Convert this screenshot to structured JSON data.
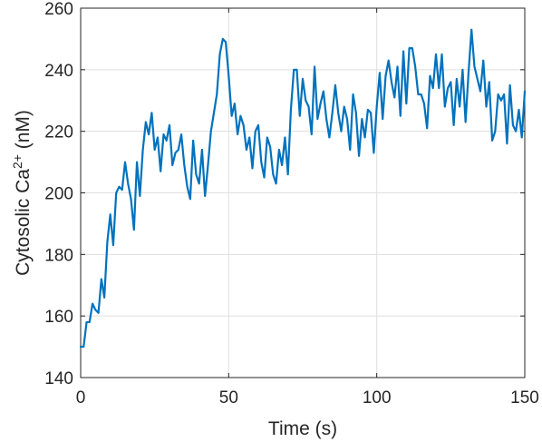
{
  "chart_data": {
    "type": "line",
    "title": "",
    "xlabel": "Time (s)",
    "ylabel_base": "Cytosolic Ca",
    "ylabel_superscript": "2+",
    "ylabel_unit": " (nM)",
    "xlim": [
      0,
      150
    ],
    "ylim": [
      140,
      260
    ],
    "xticks": [
      0,
      50,
      100,
      150
    ],
    "xtick_labels": [
      "0",
      "50",
      "100",
      "150"
    ],
    "yticks": [
      140,
      160,
      180,
      200,
      220,
      240,
      260
    ],
    "ytick_labels": [
      "140",
      "160",
      "180",
      "200",
      "220",
      "240",
      "260"
    ],
    "grid": true,
    "legend": "none",
    "line_color": "#0072BD",
    "series": [
      {
        "x": [
          0,
          1,
          2,
          3,
          4,
          5,
          6,
          7,
          8,
          9,
          10,
          11,
          12,
          13,
          14,
          15,
          16,
          17,
          18,
          19,
          20,
          21,
          22,
          23,
          24,
          25,
          26,
          27,
          28,
          29,
          30,
          31,
          32,
          33,
          34,
          35,
          36,
          37,
          38,
          39,
          40,
          41,
          42,
          43,
          44,
          45,
          46,
          47,
          48,
          49,
          50,
          51,
          52,
          53,
          54,
          55,
          56,
          57,
          58,
          59,
          60,
          61,
          62,
          63,
          64,
          65,
          66,
          67,
          68,
          69,
          70,
          71,
          72,
          73,
          74,
          75,
          76,
          77,
          78,
          79,
          80,
          81,
          82,
          83,
          84,
          85,
          86,
          87,
          88,
          89,
          90,
          91,
          92,
          93,
          94,
          95,
          96,
          97,
          98,
          99,
          100,
          101,
          102,
          103,
          104,
          105,
          106,
          107,
          108,
          109,
          110,
          111,
          112,
          113,
          114,
          115,
          116,
          117,
          118,
          119,
          120,
          121,
          122,
          123,
          124,
          125,
          126,
          127,
          128,
          129,
          130,
          131,
          132,
          133,
          134,
          135,
          136,
          137,
          138,
          139,
          140,
          141,
          142,
          143,
          144,
          145,
          146,
          147,
          148,
          149,
          150
        ],
        "y": [
          150,
          150,
          158,
          158,
          164,
          162,
          161,
          172,
          166,
          184,
          193,
          183,
          200,
          202,
          201,
          210,
          203,
          198,
          188,
          210,
          199,
          214,
          223,
          219,
          226,
          214,
          218,
          207,
          219,
          217,
          222,
          209,
          213,
          214,
          219,
          209,
          202,
          198,
          217,
          206,
          203,
          214,
          199,
          209,
          220,
          226,
          232,
          245,
          250,
          249,
          238,
          225,
          229,
          219,
          225,
          222,
          214,
          218,
          208,
          220,
          222,
          210,
          205,
          218,
          215,
          206,
          203,
          214,
          209,
          218,
          206,
          227,
          240,
          240,
          225,
          237,
          230,
          228,
          219,
          241,
          224,
          229,
          233,
          224,
          218,
          226,
          235,
          226,
          220,
          228,
          224,
          214,
          232,
          226,
          212,
          224,
          218,
          227,
          226,
          213,
          228,
          239,
          224,
          238,
          243,
          236,
          231,
          241,
          225,
          246,
          229,
          247,
          247,
          241,
          232,
          232,
          229,
          221,
          238,
          234,
          245,
          234,
          245,
          228,
          234,
          236,
          222,
          237,
          228,
          240,
          223,
          239,
          253,
          241,
          237,
          233,
          243,
          228,
          236,
          217,
          220,
          232,
          230,
          232,
          216,
          235,
          222,
          220,
          227,
          218,
          233
        ]
      }
    ]
  }
}
